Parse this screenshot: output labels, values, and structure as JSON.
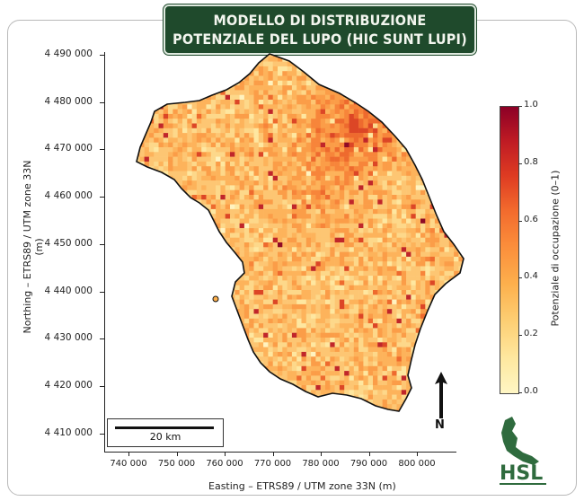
{
  "title": {
    "line1": "MODELLO DI DISTRIBUZIONE",
    "line2": "POTENZIALE DEL LUPO (HIC SUNT LUPI)"
  },
  "y_axis": {
    "label": "Northing – ETRS89 / UTM zone 33N (m)",
    "ticks": [
      "4 490 000",
      "4 480 000",
      "4 470 000",
      "4 460 000",
      "4 450 000",
      "4 440 000",
      "4 430 000",
      "4 420 000",
      "4 410 000"
    ]
  },
  "x_axis": {
    "label": "Easting – ETRS89 / UTM zone 33N (m)",
    "ticks": [
      "740 000",
      "750 000",
      "760 000",
      "770 000",
      "780 000",
      "790 000",
      "800 000"
    ]
  },
  "colorbar": {
    "label": "Potenziale di occupazione (0–1)",
    "ticks": [
      "1.0",
      "0.8",
      "0.6",
      "0.4",
      "0.2",
      "0.0"
    ],
    "colors": [
      "#fff6c4",
      "#fdcf74",
      "#fb8c3a",
      "#de3b22",
      "#8c0026"
    ]
  },
  "scalebar": {
    "label": "20 km"
  },
  "north_arrow": {
    "label": "N"
  },
  "logo": {
    "text": "HSL"
  }
}
